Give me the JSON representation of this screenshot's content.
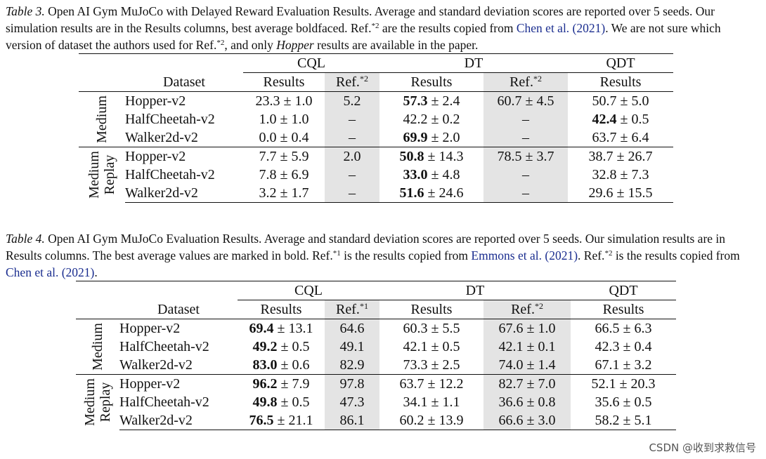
{
  "table3": {
    "caption": {
      "label": "Table 3.",
      "t1": " Open AI Gym MuJoCo with Delayed Reward Evaluation Results. Average and standard deviation scores are reported over 5 seeds. Our simulation results are in the Results columns, best average boldfaced. Ref.",
      "sup1": "*2",
      "t2": " are the results copied from ",
      "cite1": "Chen et al. (2021)",
      "t3": ". We are not sure which version of dataset the authors used for Ref.",
      "sup2": "*2",
      "t4": ", and only ",
      "italic_word": "Hopper",
      "t5": " results are available in the paper."
    },
    "group_headers": [
      "CQL",
      "DT",
      "QDT"
    ],
    "col_headers": {
      "dataset": "Dataset",
      "results": "Results",
      "ref": "Ref.",
      "ref_sup": "*2"
    },
    "groups": [
      {
        "name": "Medium",
        "rows": [
          {
            "dataset": "Hopper-v2",
            "cql_b": "",
            "cql": "23.3 ± 1.0",
            "cql_ref": "5.2",
            "dt_b": "57.3",
            "dt": " ± 2.4",
            "dt_ref": "60.7 ± 4.5",
            "qdt_b": "",
            "qdt": "50.7 ± 5.0"
          },
          {
            "dataset": "HalfCheetah-v2",
            "cql_b": "",
            "cql": "1.0 ± 1.0",
            "cql_ref": "–",
            "dt_b": "",
            "dt": "42.2 ± 0.2",
            "dt_ref": "–",
            "qdt_b": "42.4",
            "qdt": " ± 0.5"
          },
          {
            "dataset": "Walker2d-v2",
            "cql_b": "",
            "cql": "0.0 ± 0.4",
            "cql_ref": "–",
            "dt_b": "69.9",
            "dt": " ± 2.0",
            "dt_ref": "–",
            "qdt_b": "",
            "qdt": "63.7 ± 6.4"
          }
        ]
      },
      {
        "name": "Medium Replay",
        "name_l1": "Medium",
        "name_l2": "Replay",
        "rows": [
          {
            "dataset": "Hopper-v2",
            "cql_b": "",
            "cql": "7.7 ± 5.9",
            "cql_ref": "2.0",
            "dt_b": "50.8",
            "dt": " ± 14.3",
            "dt_ref": "78.5 ± 3.7",
            "qdt_b": "",
            "qdt": "38.7 ± 26.7"
          },
          {
            "dataset": "HalfCheetah-v2",
            "cql_b": "",
            "cql": "7.8 ± 6.9",
            "cql_ref": "–",
            "dt_b": "33.0",
            "dt": " ± 4.8",
            "dt_ref": "–",
            "qdt_b": "",
            "qdt": "32.8 ± 7.3"
          },
          {
            "dataset": "Walker2d-v2",
            "cql_b": "",
            "cql": "3.2 ± 1.7",
            "cql_ref": "–",
            "dt_b": "51.6",
            "dt": " ± 24.6",
            "dt_ref": "–",
            "qdt_b": "",
            "qdt": "29.6 ± 15.5"
          }
        ]
      }
    ]
  },
  "table4": {
    "caption": {
      "label": "Table 4.",
      "t1": " Open AI Gym MuJoCo Evaluation Results. Average and standard deviation scores are reported over 5 seeds. Our simulation results are in Results columns. The best average values are marked in bold. Ref.",
      "sup1": "*1",
      "t2": " is the results copied from ",
      "cite1": "Emmons et al. (2021)",
      "t3": ". Ref.",
      "sup2": "*2",
      "t4": " is the results copied from ",
      "cite2": "Chen et al. (2021)",
      "t5": "."
    },
    "group_headers": [
      "CQL",
      "DT",
      "QDT"
    ],
    "col_headers": {
      "dataset": "Dataset",
      "results": "Results",
      "ref": "Ref.",
      "ref1_sup": "*1",
      "ref2_sup": "*2"
    },
    "groups": [
      {
        "name": "Medium",
        "rows": [
          {
            "dataset": "Hopper-v2",
            "cql_b": "69.4",
            "cql": " ± 13.1",
            "cql_ref": "64.6",
            "dt": "60.3 ± 5.5",
            "dt_ref": "67.6 ± 1.0",
            "qdt": "66.5 ± 6.3"
          },
          {
            "dataset": "HalfCheetah-v2",
            "cql_b": "49.2",
            "cql": " ± 0.5",
            "cql_ref": "49.1",
            "dt": "42.1 ± 0.5",
            "dt_ref": "42.1 ± 0.1",
            "qdt": "42.3 ± 0.4"
          },
          {
            "dataset": "Walker2d-v2",
            "cql_b": "83.0",
            "cql": " ± 0.6",
            "cql_ref": "82.9",
            "dt": "73.3 ± 2.5",
            "dt_ref": "74.0 ± 1.4",
            "qdt": "67.1 ± 3.2"
          }
        ]
      },
      {
        "name": "Medium Replay",
        "name_l1": "Medium",
        "name_l2": "Replay",
        "rows": [
          {
            "dataset": "Hopper-v2",
            "cql_b": "96.2",
            "cql": " ± 7.9",
            "cql_ref": "97.8",
            "dt": "63.7 ± 12.2",
            "dt_ref": "82.7 ± 7.0",
            "qdt": "52.1 ± 20.3"
          },
          {
            "dataset": "HalfCheetah-v2",
            "cql_b": "49.8",
            "cql": " ± 0.5",
            "cql_ref": "47.3",
            "dt": "34.1 ± 1.1",
            "dt_ref": "36.6 ± 0.8",
            "qdt": "35.6 ± 0.5"
          },
          {
            "dataset": "Walker2d-v2",
            "cql_b": "76.5",
            "cql": " ± 21.1",
            "cql_ref": "86.1",
            "dt": "60.2 ± 13.9",
            "dt_ref": "66.6 ± 3.0",
            "qdt": "58.2 ± 5.1"
          }
        ]
      }
    ]
  },
  "watermark": "CSDN @收到求救信号"
}
